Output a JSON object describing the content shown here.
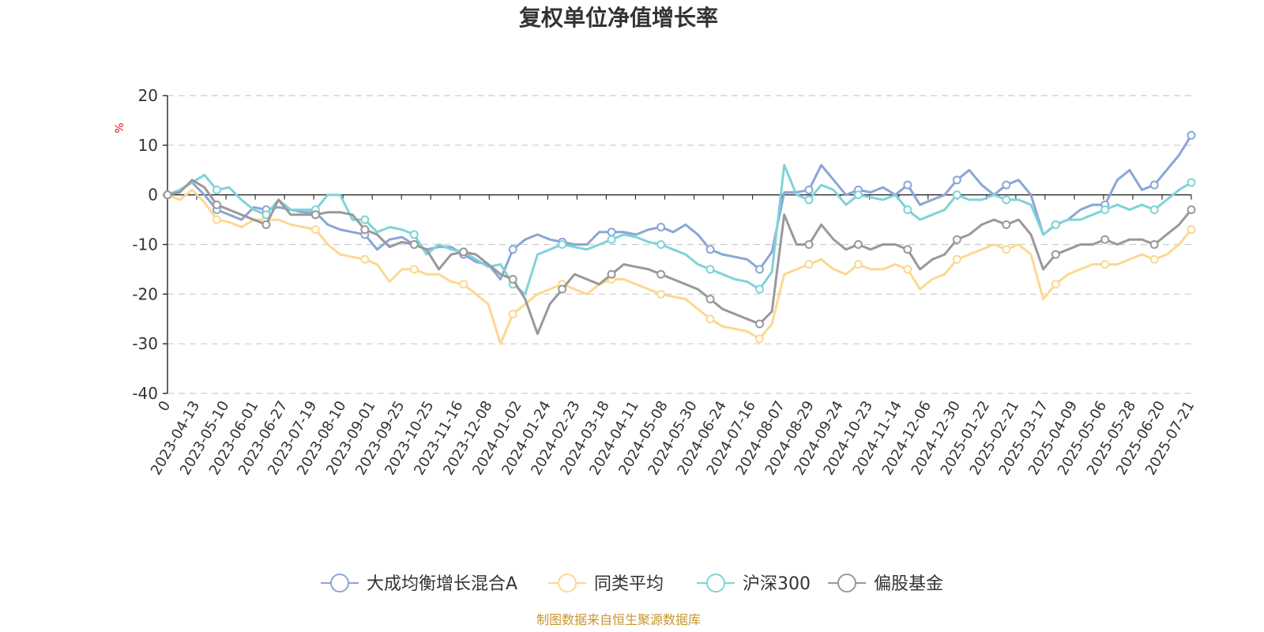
{
  "chart_data": {
    "type": "line",
    "title": "复权单位净值增长率",
    "ylabel": "%",
    "ylim": [
      -40,
      20
    ],
    "yticks": [
      20,
      10,
      0,
      -10,
      -20,
      -30,
      -40
    ],
    "grid": true,
    "legend_position": "bottom-center",
    "x_tick_labels": [
      "0",
      "2023-04-13",
      "2023-05-10",
      "2023-06-01",
      "2023-06-27",
      "2023-07-19",
      "2023-08-10",
      "2023-09-01",
      "2023-09-25",
      "2023-10-25",
      "2023-11-16",
      "2023-12-08",
      "2024-01-02",
      "2024-01-24",
      "2024-02-23",
      "2024-03-18",
      "2024-04-11",
      "2024-05-08",
      "2024-05-30",
      "2024-06-24",
      "2024-07-16",
      "2024-08-07",
      "2024-08-29",
      "2024-09-24",
      "2024-10-23",
      "2024-11-14",
      "2024-12-06",
      "2024-12-30",
      "2025-01-22",
      "2025-02-21",
      "2025-03-17",
      "2025-04-09",
      "2025-05-06",
      "2025-05-28",
      "2025-06-20",
      "2025-07-21"
    ],
    "series": [
      {
        "name": "大成均衡增长混合A",
        "color": "#8aa6d6",
        "values": [
          0,
          1.0,
          2.5,
          0,
          -3,
          -4,
          -5,
          -2.5,
          -3,
          -2.5,
          -3,
          -3.5,
          -3.5,
          -6,
          -7,
          -7.5,
          -8,
          -11,
          -9,
          -8.5,
          -10,
          -11,
          -10.5,
          -10.5,
          -12,
          -13.5,
          -14,
          -17,
          -11,
          -9,
          -8,
          -9,
          -9.5,
          -10,
          -10,
          -7.5,
          -7.5,
          -7.5,
          -8,
          -7,
          -6.5,
          -7.5,
          -6,
          -8,
          -11,
          -12,
          -12.5,
          -13,
          -15,
          -11.5,
          0.5,
          0.5,
          1,
          6,
          3,
          0,
          1,
          0.5,
          1.5,
          0,
          2,
          -2,
          -1,
          0,
          3,
          5,
          2,
          0,
          2,
          3,
          0,
          -8,
          -6,
          -5,
          -3,
          -2,
          -2,
          3,
          5,
          1,
          2,
          5,
          8,
          12
        ]
      },
      {
        "name": "同类平均",
        "color": "#fcd890",
        "values": [
          0,
          -1.0,
          1.0,
          -1.5,
          -5,
          -5.5,
          -6.5,
          -5,
          -5,
          -5,
          -6,
          -6.5,
          -7,
          -10,
          -12,
          -12.5,
          -13,
          -14,
          -17.5,
          -15,
          -15,
          -16,
          -16,
          -17.5,
          -18,
          -20,
          -22,
          -30,
          -24,
          -22,
          -20,
          -19,
          -18,
          -19,
          -20,
          -18,
          -17,
          -17,
          -18,
          -19,
          -20,
          -20.5,
          -21,
          -23,
          -25,
          -26.5,
          -27,
          -27.5,
          -29,
          -26,
          -16,
          -15,
          -14,
          -13,
          -15,
          -16,
          -14,
          -15,
          -15,
          -14,
          -15,
          -19,
          -17,
          -16,
          -13,
          -12,
          -11,
          -10,
          -11,
          -10,
          -12,
          -21,
          -18,
          -16,
          -15,
          -14,
          -14,
          -14,
          -13,
          -12,
          -13,
          -12,
          -10,
          -7
        ]
      },
      {
        "name": "沪深300",
        "color": "#7fd3d8",
        "values": [
          0,
          1.0,
          2.5,
          4,
          1,
          1.5,
          -1,
          -3,
          -4,
          -1,
          -3,
          -3,
          -3,
          0,
          0,
          -5,
          -5,
          -7.5,
          -6.5,
          -7,
          -8,
          -12,
          -10,
          -11,
          -11.5,
          -13,
          -14.5,
          -14,
          -18,
          -20,
          -12,
          -11,
          -10,
          -10.5,
          -11,
          -10,
          -9,
          -8,
          -8.5,
          -9.5,
          -10,
          -11,
          -12,
          -14,
          -15,
          -16,
          -17,
          -17.5,
          -19,
          -15.5,
          6,
          0,
          -1,
          2,
          1,
          -2,
          0,
          -0.5,
          -1,
          0,
          -3,
          -5,
          -4,
          -3,
          0,
          -1,
          -1,
          0,
          -1,
          -1,
          -2,
          -8,
          -6,
          -5,
          -5,
          -4,
          -3,
          -2,
          -3,
          -2,
          -3,
          -1,
          1,
          2.5
        ]
      },
      {
        "name": "偏股基金",
        "color": "#999999",
        "values": [
          0,
          0.5,
          3.0,
          1.5,
          -2,
          -3,
          -4,
          -5,
          -6,
          -1,
          -4,
          -4,
          -4,
          -3.5,
          -3.5,
          -4,
          -7,
          -8,
          -10.5,
          -9.5,
          -10,
          -11,
          -15,
          -12,
          -11.5,
          -12,
          -14,
          -16,
          -17,
          -21,
          -28,
          -22,
          -19,
          -16,
          -17,
          -18,
          -16,
          -14,
          -14.5,
          -15,
          -16,
          -17,
          -18,
          -19,
          -21,
          -23,
          -24,
          -25,
          -26,
          -23.5,
          -4,
          -10,
          -10,
          -6,
          -9,
          -11,
          -10,
          -11,
          -10,
          -10,
          -11,
          -15,
          -13,
          -12,
          -9,
          -8,
          -6,
          -5,
          -6,
          -5,
          -8,
          -15,
          -12,
          -11,
          -10,
          -10,
          -9,
          -10,
          -9,
          -9,
          -10,
          -8,
          -6,
          -3
        ]
      }
    ]
  },
  "source_note": "制图数据来自恒生聚源数据库",
  "colors": {
    "axis": "#333333",
    "grid": "#cccccc",
    "unit": "#e0101a",
    "source": "#c8962e"
  }
}
